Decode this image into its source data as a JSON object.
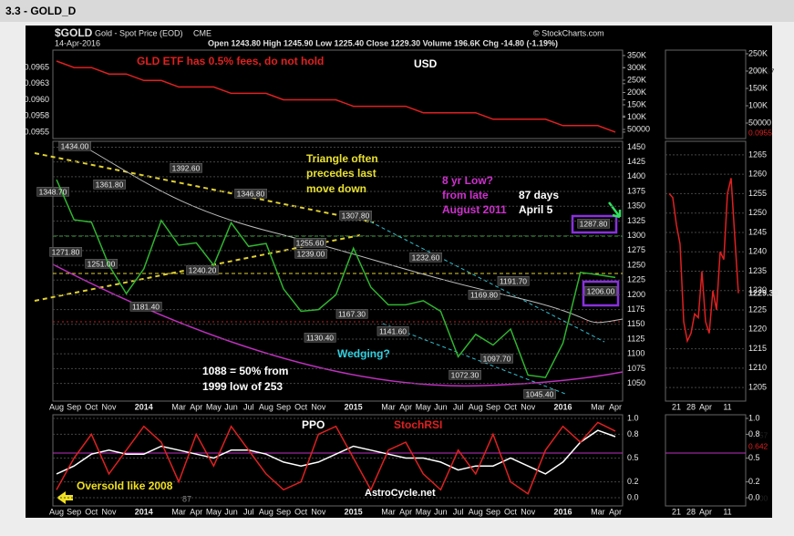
{
  "header": {
    "title": "3.3 - GOLD_D"
  },
  "chart_data": [
    {
      "type": "line",
      "title": "$GOLD",
      "subtitle": "Gold - Spot Price (EOD)",
      "exchange": "CME",
      "date": "14-Apr-2016",
      "quote": "Open 1243.80  High 1245.90  Low 1225.40  Close 1229.30  Volume 196.6K  Chg -14.80 (-1.19%)",
      "source": "© StockCharts.com",
      "categories": [
        "Aug",
        "Sep",
        "Oct",
        "Nov",
        null,
        "2014",
        null,
        "Mar",
        "Apr",
        "May",
        "Jun",
        "Jul",
        "Aug",
        "Sep",
        "Oct",
        "Nov",
        null,
        "2015",
        null,
        "Mar",
        "Apr",
        "May",
        "Jun",
        "Jul",
        "Aug",
        "Sep",
        "Oct",
        "Nov",
        null,
        "2016",
        null,
        "Mar",
        "Apr"
      ],
      "values": [
        1395,
        1327,
        1323,
        1250,
        1202,
        1244,
        1326,
        1284,
        1288,
        1250,
        1322,
        1282,
        1287,
        1210,
        1172,
        1175,
        1200,
        1279,
        1213,
        1183,
        1183,
        1190,
        1172,
        1095,
        1133,
        1115,
        1142,
        1064,
        1060,
        1118,
        1238,
        1234,
        1229.3
      ],
      "color": "#2fb52f",
      "ylim": [
        1020,
        1460
      ],
      "yticks": [
        1050,
        1075,
        1100,
        1125,
        1150,
        1175,
        1200,
        1225,
        1250,
        1275,
        1300,
        1325,
        1350,
        1375,
        1400,
        1425,
        1450
      ],
      "grid": true,
      "price_labels": [
        "1434.00",
        "1348.70",
        "1361.80",
        "1392.60",
        "1271.80",
        "1251.00",
        "1181.40",
        "1240.20",
        "1346.80",
        "1307.80",
        "1255.60",
        "1239.00",
        "1167.30",
        "1130.40",
        "1232.60",
        "1141.60",
        "1169.80",
        "1191.70",
        "1072.30",
        "1097.70",
        "1045.40",
        "1287.80",
        "1206.00"
      ],
      "annotations": [
        "Triangle often",
        "precedes last",
        "move down",
        "8 yr Low?",
        "from late",
        "August 2011",
        "87 days",
        "April 5",
        "Wedging?",
        "1088 = 50% from",
        "1999  low of 253"
      ]
    },
    {
      "type": "line",
      "values": [
        0.0966,
        0.0965,
        0.0965,
        0.0964,
        0.0964,
        0.0963,
        0.0963,
        0.0962,
        0.0962,
        0.0962,
        0.0961,
        0.0961,
        0.0961,
        0.096,
        0.096,
        0.096,
        0.096,
        0.0959,
        0.0959,
        0.0959,
        0.0959,
        0.0958,
        0.0958,
        0.0958,
        0.0958,
        0.0957,
        0.0957,
        0.0957,
        0.0957,
        0.0956,
        0.0956,
        0.0956,
        0.0955
      ],
      "color": "#e02020",
      "ylim": [
        0.0954,
        0.09677
      ],
      "yticks": [
        {
          "value": 0.0965,
          "label": "0.0965"
        },
        {
          "value": 0.09625,
          "label": "0.0963"
        },
        {
          "value": 0.096,
          "label": "0.0960"
        },
        {
          "value": 0.09575,
          "label": "0.0958"
        },
        {
          "value": 0.0955,
          "label": "0.0955"
        }
      ],
      "y2lim": [
        13000,
        372000
      ],
      "y2ticks": [
        {
          "value": 350000,
          "label": "350K"
        },
        {
          "value": 300000,
          "label": "300K"
        },
        {
          "value": 250000,
          "label": "250K"
        },
        {
          "value": 200000,
          "label": "200K"
        },
        {
          "value": 150000,
          "label": "150K"
        },
        {
          "value": 100000,
          "label": "100K"
        },
        50000
      ],
      "annotations": [
        "GLD ETF  has 0.5% fees, do not hold",
        "USD"
      ]
    },
    {
      "type": "line",
      "categories": [
        "Aug",
        "Sep",
        "Oct",
        "Nov",
        null,
        "2014",
        null,
        "Mar",
        "Apr",
        "May",
        "Jun",
        "Jul",
        "Aug",
        "Sep",
        "Oct",
        "Nov",
        null,
        "2015",
        null,
        "Mar",
        "Apr",
        "May",
        "Jun",
        "Jul",
        "Aug",
        "Sep",
        "Oct",
        "Nov",
        null,
        "2016",
        null,
        "Mar",
        "Apr"
      ],
      "series": [
        {
          "name": "PPO",
          "color": "#ffffff",
          "values": [
            0.3,
            0.4,
            0.55,
            0.6,
            0.55,
            0.55,
            0.65,
            0.6,
            0.55,
            0.5,
            0.6,
            0.6,
            0.55,
            0.45,
            0.4,
            0.45,
            0.55,
            0.65,
            0.6,
            0.55,
            0.5,
            0.5,
            0.45,
            0.35,
            0.4,
            0.4,
            0.5,
            0.4,
            0.3,
            0.45,
            0.7,
            0.85,
            0.77
          ]
        },
        {
          "name": "StochRSI",
          "color": "#e02020",
          "values": [
            0.1,
            0.5,
            0.8,
            0.3,
            0.6,
            0.9,
            0.7,
            0.2,
            0.8,
            0.4,
            0.9,
            0.6,
            0.3,
            0.1,
            0.2,
            0.8,
            0.9,
            0.5,
            0.1,
            0.6,
            0.7,
            0.3,
            0.1,
            0.6,
            0.3,
            0.8,
            0.2,
            0.05,
            0.6,
            0.9,
            0.7,
            0.95,
            0.84
          ]
        }
      ],
      "ylim": [
        -0.103,
        1.046
      ],
      "yticks": [
        {
          "value": 1,
          "label": "1.0"
        },
        0.8,
        0.5,
        0.2,
        {
          "value": 0,
          "label": "0.0"
        }
      ],
      "annotations": [
        "Oversold like 2008",
        "AstroCycle.net",
        "87"
      ]
    },
    {
      "type": "line",
      "categories": [
        null,
        null,
        "21",
        null,
        null,
        null,
        "28",
        null,
        null,
        null,
        "Apr",
        null,
        null,
        null,
        null,
        null,
        "11",
        null,
        null,
        null
      ],
      "values": [
        1255,
        1254,
        1247,
        1242,
        1222,
        1217,
        1219,
        1224,
        1223,
        1235,
        1222,
        1219,
        1230,
        1225,
        1240,
        1238,
        1255,
        1259,
        1244,
        1229.3
      ],
      "color": "#e02020",
      "ylim": [
        1201.5,
        1268.5
      ],
      "yticks": [
        1205,
        1210,
        1215,
        1220,
        1225,
        1230,
        1235,
        1240,
        1245,
        1250,
        1255,
        1260,
        1265
      ],
      "last_label": "1229.30"
    },
    {
      "type": "line",
      "ylim": [
        5300,
        260500
      ],
      "yticks": [
        {
          "value": 250000,
          "label": "250K"
        },
        {
          "value": 200000,
          "label": "200K"
        },
        {
          "value": 150000,
          "label": "150K"
        },
        {
          "value": 100000,
          "label": "100K"
        },
        50000
      ],
      "last_labels": [
        "196567",
        "0.0955"
      ]
    },
    {
      "type": "line",
      "categories": [
        null,
        null,
        "21",
        null,
        null,
        null,
        "28",
        null,
        null,
        null,
        "Apr",
        null,
        null,
        null,
        null,
        null,
        "11",
        null,
        null,
        null
      ],
      "ylim": [
        -0.103,
        1.046
      ],
      "yticks": [
        {
          "value": 1,
          "label": "1.0"
        },
        0.8,
        0.5,
        0.2,
        {
          "value": 0,
          "label": "0.0"
        }
      ],
      "last_labels": [
        "0.757",
        "0.642",
        "0.000"
      ]
    }
  ]
}
